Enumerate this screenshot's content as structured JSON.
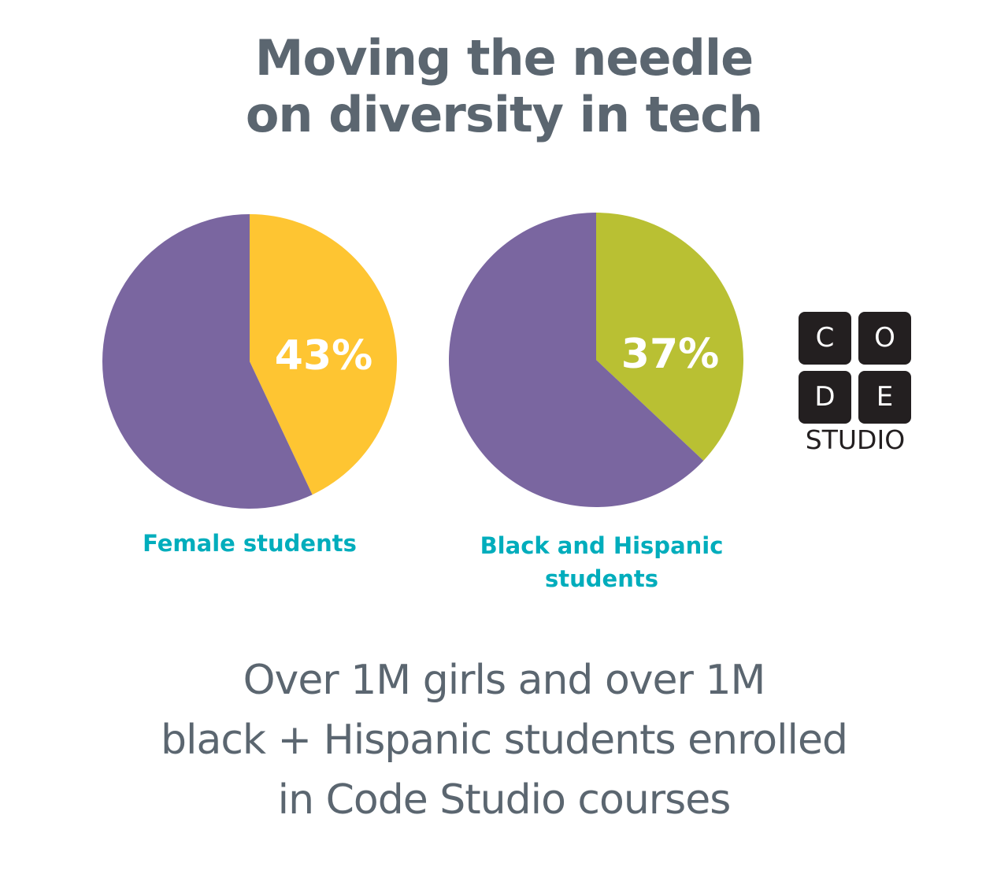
{
  "title_lines": [
    "Moving the needle",
    "on diversity in tech"
  ],
  "chart_data": [
    {
      "type": "pie",
      "label": "Female students",
      "values": [
        43,
        57
      ],
      "highlight_label": "43%",
      "colors": [
        "#fec532",
        "#7a66a0"
      ]
    },
    {
      "type": "pie",
      "label_lines": [
        "Black and Hispanic",
        "students"
      ],
      "values": [
        37,
        63
      ],
      "highlight_label": "37%",
      "colors": [
        "#b9c033",
        "#7a66a0"
      ]
    }
  ],
  "logo": {
    "tiles": [
      "C",
      "O",
      "D",
      "E"
    ],
    "wordmark": "STUDIO"
  },
  "footer_lines": [
    "Over 1M girls and over 1M",
    "black + Hispanic students enrolled",
    "in Code Studio courses"
  ],
  "colors": {
    "title": "#5b6670",
    "label": "#00adbc",
    "purple": "#7a66a0"
  }
}
